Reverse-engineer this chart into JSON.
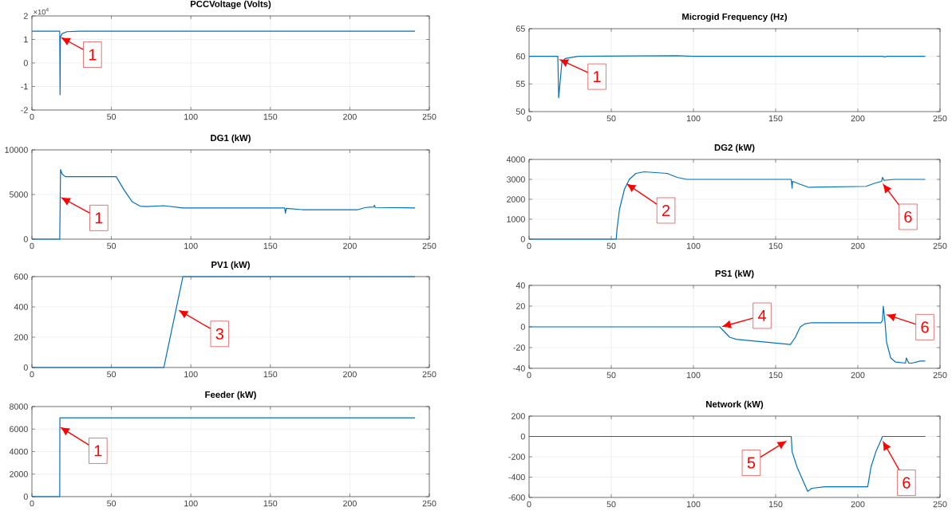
{
  "chart_data": [
    {
      "type": "line",
      "title": "PCCVoltage (Volts)",
      "color": "#0072bd",
      "grid": true,
      "xlim": [
        0,
        250
      ],
      "xticks": [
        0,
        50,
        100,
        150,
        200,
        250
      ],
      "ylim": [
        -2,
        2
      ],
      "yticks": [
        -2,
        -1,
        0,
        1,
        2
      ],
      "x": [
        0,
        17.5,
        17.7,
        17.9,
        19,
        22,
        30,
        241
      ],
      "values": [
        1.35,
        1.35,
        -1.35,
        1.1,
        1.25,
        1.33,
        1.35,
        1.35
      ],
      "annotations": [
        "×10$^{4}$",
        {
          "text": "1",
          "x": 18,
          "y": 1.1
        }
      ]
    },
    {
      "type": "line",
      "title": "Microgid Frequency (Hz)",
      "color": "#0072bd",
      "grid": true,
      "xlim": [
        0,
        250
      ],
      "xticks": [
        0,
        50,
        100,
        150,
        200,
        250
      ],
      "ylim": [
        50,
        65
      ],
      "yticks": [
        50,
        55,
        60,
        65
      ],
      "x": [
        0,
        17.5,
        18,
        20,
        22,
        30,
        90,
        100,
        215,
        216,
        218,
        241
      ],
      "values": [
        60,
        60,
        52.5,
        59,
        59.6,
        60,
        60.1,
        60,
        60,
        59.9,
        60,
        60
      ],
      "annotations": [
        {
          "text": "1",
          "x": 18,
          "y": 59.5
        }
      ]
    },
    {
      "type": "line",
      "title": "DG1 (kW)",
      "color": "#0072bd",
      "grid": true,
      "xlim": [
        0,
        250
      ],
      "xticks": [
        0,
        50,
        100,
        150,
        200,
        250
      ],
      "ylim": [
        0,
        10000
      ],
      "yticks": [
        0,
        5000,
        10000
      ],
      "x": [
        0,
        17.5,
        18,
        19,
        21,
        52,
        53,
        58,
        63,
        68,
        72,
        83,
        95,
        159,
        159.5,
        160,
        170,
        205,
        210,
        215,
        215.5,
        216,
        241
      ],
      "values": [
        0,
        0,
        7800,
        7300,
        7000,
        7000,
        7000,
        5500,
        4200,
        3700,
        3650,
        3750,
        3500,
        3500,
        2900,
        3450,
        3300,
        3300,
        3550,
        3600,
        3800,
        3550,
        3500
      ],
      "annotations": [
        {
          "text": "1",
          "x": 18,
          "y": 4700
        }
      ]
    },
    {
      "type": "line",
      "title": "DG2 (kW)",
      "color": "#0072bd",
      "grid": true,
      "xlim": [
        0,
        250
      ],
      "xticks": [
        0,
        50,
        100,
        150,
        200,
        250
      ],
      "ylim": [
        0,
        4000
      ],
      "yticks": [
        0,
        1000,
        2000,
        3000,
        4000
      ],
      "x": [
        0,
        53,
        53.5,
        55,
        58,
        61,
        65,
        70,
        84,
        90,
        96,
        159.5,
        160,
        160.3,
        165,
        168.5,
        170,
        205,
        210,
        214.5,
        215,
        216,
        222,
        241
      ],
      "values": [
        0,
        0,
        500,
        1500,
        2500,
        3000,
        3300,
        3380,
        3300,
        3100,
        3000,
        3000,
        2550,
        2900,
        2750,
        2650,
        2600,
        2650,
        2800,
        2900,
        3100,
        2950,
        3000,
        3000
      ],
      "annotations": [
        {
          "text": "2",
          "x": 59,
          "y": 2800
        },
        {
          "text": "6",
          "x": 215,
          "y": 2800
        }
      ]
    },
    {
      "type": "line",
      "title": "PV1 (kW)",
      "color": "#0072bd",
      "grid": true,
      "xlim": [
        0,
        250
      ],
      "xticks": [
        0,
        50,
        100,
        150,
        200,
        250
      ],
      "ylim": [
        0,
        600
      ],
      "yticks": [
        0,
        200,
        400,
        600
      ],
      "x": [
        0,
        83,
        95,
        241
      ],
      "values": [
        0,
        0,
        600,
        600
      ],
      "annotations": [
        {
          "text": "3",
          "x": 92,
          "y": 380
        }
      ]
    },
    {
      "type": "line",
      "title": "PS1 (kW)",
      "color": "#0072bd",
      "grid": true,
      "xlim": [
        0,
        250
      ],
      "xticks": [
        0,
        50,
        100,
        150,
        200,
        250
      ],
      "ylim": [
        -40,
        40
      ],
      "yticks": [
        -40,
        -20,
        0,
        20,
        40
      ],
      "x": [
        0,
        116,
        119,
        122,
        126,
        159,
        162,
        165,
        168,
        172,
        214,
        215,
        215.5,
        216.5,
        217.5,
        220,
        223,
        229,
        229.5,
        231,
        233,
        238,
        241
      ],
      "values": [
        0,
        0,
        -5,
        -10,
        -12,
        -17,
        -10,
        0,
        3,
        4,
        4,
        6,
        20,
        5,
        -15,
        -30,
        -34,
        -35,
        -30,
        -35,
        -35,
        -33,
        -33
      ],
      "annotations": [
        {
          "text": "4",
          "x": 117,
          "y": 0
        },
        {
          "text": "6",
          "x": 217,
          "y": 12
        }
      ]
    },
    {
      "type": "line",
      "title": "Feeder (kW)",
      "color": "#0072bd",
      "grid": true,
      "xlim": [
        0,
        250
      ],
      "xticks": [
        0,
        50,
        100,
        150,
        200,
        250
      ],
      "ylim": [
        0,
        8000
      ],
      "yticks": [
        0,
        2000,
        4000,
        6000,
        8000
      ],
      "x": [
        0,
        17.5,
        17.6,
        241
      ],
      "values": [
        0,
        0,
        7000,
        7000
      ],
      "annotations": [
        {
          "text": "1",
          "x": 17.5,
          "y": 6200
        }
      ]
    },
    {
      "type": "line",
      "title": "Network (kW)",
      "color": "#0072bd",
      "grid": true,
      "xlim": [
        0,
        250
      ],
      "xticks": [
        0,
        50,
        100,
        150,
        200,
        250
      ],
      "ylim": [
        -600,
        200
      ],
      "yticks": [
        -600,
        -400,
        -200,
        0,
        200
      ],
      "x": [
        0,
        159.5,
        160,
        163,
        167,
        169.5,
        172,
        180,
        206,
        208,
        211,
        214,
        215,
        241
      ],
      "values": [
        0,
        0,
        -150,
        -300,
        -450,
        -540,
        -510,
        -495,
        -495,
        -300,
        -150,
        -40,
        0,
        0
      ],
      "annotations": [
        {
          "text": "5",
          "x": 157,
          "y": -40
        },
        {
          "text": "6",
          "x": 215,
          "y": -40
        }
      ]
    }
  ]
}
